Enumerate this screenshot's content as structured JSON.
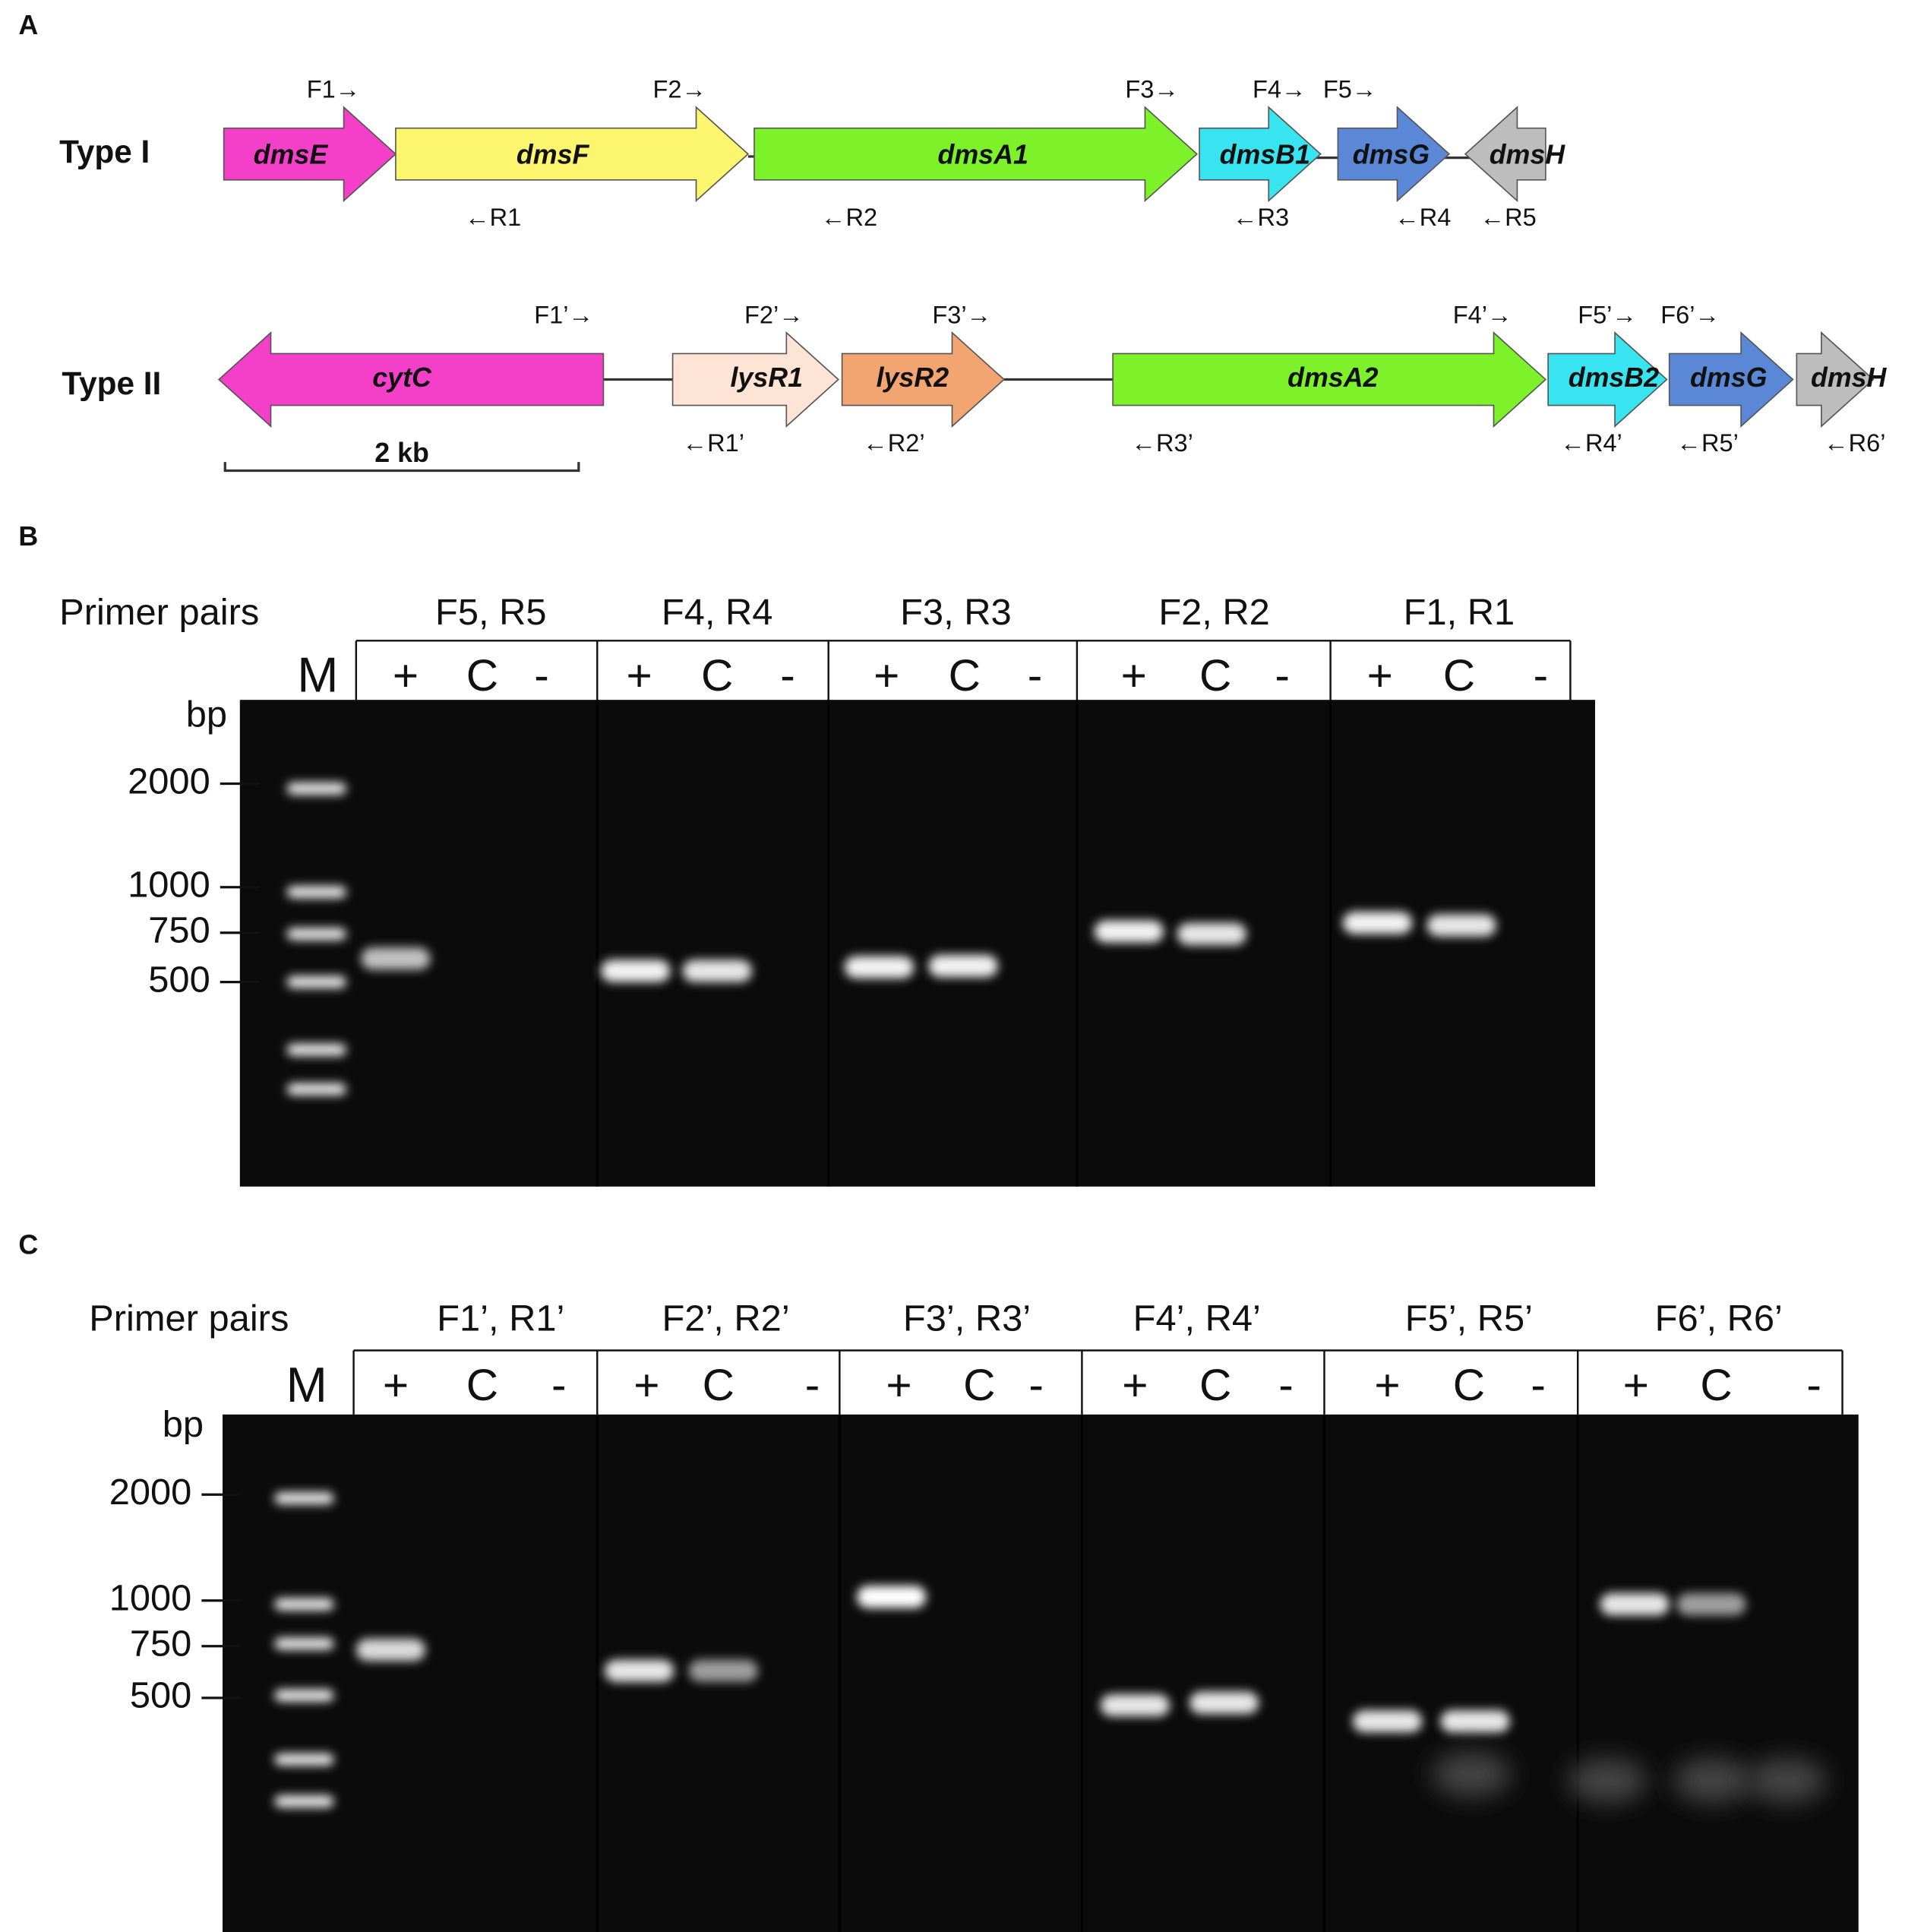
{
  "panel_a": {
    "label": "A",
    "type_1": {
      "name": "Type I",
      "genes": [
        "dmsE",
        "dmsF",
        "dmsA1",
        "dmsB1",
        "dmsG",
        "dmsH"
      ],
      "forward_primers": [
        "F1→",
        "F2→",
        "F3→",
        "F4→",
        "F5→"
      ],
      "reverse_primers": [
        "←R1",
        "←R2",
        "←R3",
        "←R4",
        "←R5"
      ]
    },
    "type_2": {
      "name": "Type II",
      "genes": [
        "cytC",
        "lysR1",
        "lysR2",
        "dmsA2",
        "dmsB2",
        "dmsG",
        "dmsH"
      ],
      "forward_primers": [
        "F1’→",
        "F2’→",
        "F3’→",
        "F4’→",
        "F5’→",
        "F6’→"
      ],
      "reverse_primers": [
        "←R1’",
        "←R2’",
        "←R3’",
        "←R4’",
        "←R5’",
        "←R6’"
      ],
      "scale_bar": "2 kb"
    }
  },
  "panel_b": {
    "label": "B",
    "primer_pairs_label": "Primer pairs",
    "marker": "M",
    "size_unit": "bp",
    "ladder": [
      2000,
      1000,
      750,
      500
    ],
    "pairs": [
      {
        "name": "F5, R5",
        "lanes": [
          "+",
          "C",
          "-"
        ]
      },
      {
        "name": "F4, R4",
        "lanes": [
          "+",
          "C",
          "-"
        ]
      },
      {
        "name": "F3, R3",
        "lanes": [
          "+",
          "C",
          "-"
        ]
      },
      {
        "name": "F2, R2",
        "lanes": [
          "+",
          "C",
          "-"
        ]
      },
      {
        "name": "F1, R1",
        "lanes": [
          "+",
          "C",
          "-"
        ]
      }
    ]
  },
  "panel_c": {
    "label": "C",
    "primer_pairs_label": "Primer pairs",
    "marker": "M",
    "size_unit": "bp",
    "ladder": [
      2000,
      1000,
      750,
      500
    ],
    "pairs": [
      {
        "name": "F1’, R1’",
        "lanes": [
          "+",
          "C",
          "-"
        ]
      },
      {
        "name": "F2’, R2’",
        "lanes": [
          "+",
          "C",
          "-"
        ]
      },
      {
        "name": "F3’, R3’",
        "lanes": [
          "+",
          "C",
          "-"
        ]
      },
      {
        "name": "F4’, R4’",
        "lanes": [
          "+",
          "C",
          "-"
        ]
      },
      {
        "name": "F5’, R5’",
        "lanes": [
          "+",
          "C",
          "-"
        ]
      },
      {
        "name": "F6’, R6’",
        "lanes": [
          "+",
          "C",
          "-"
        ]
      }
    ]
  }
}
